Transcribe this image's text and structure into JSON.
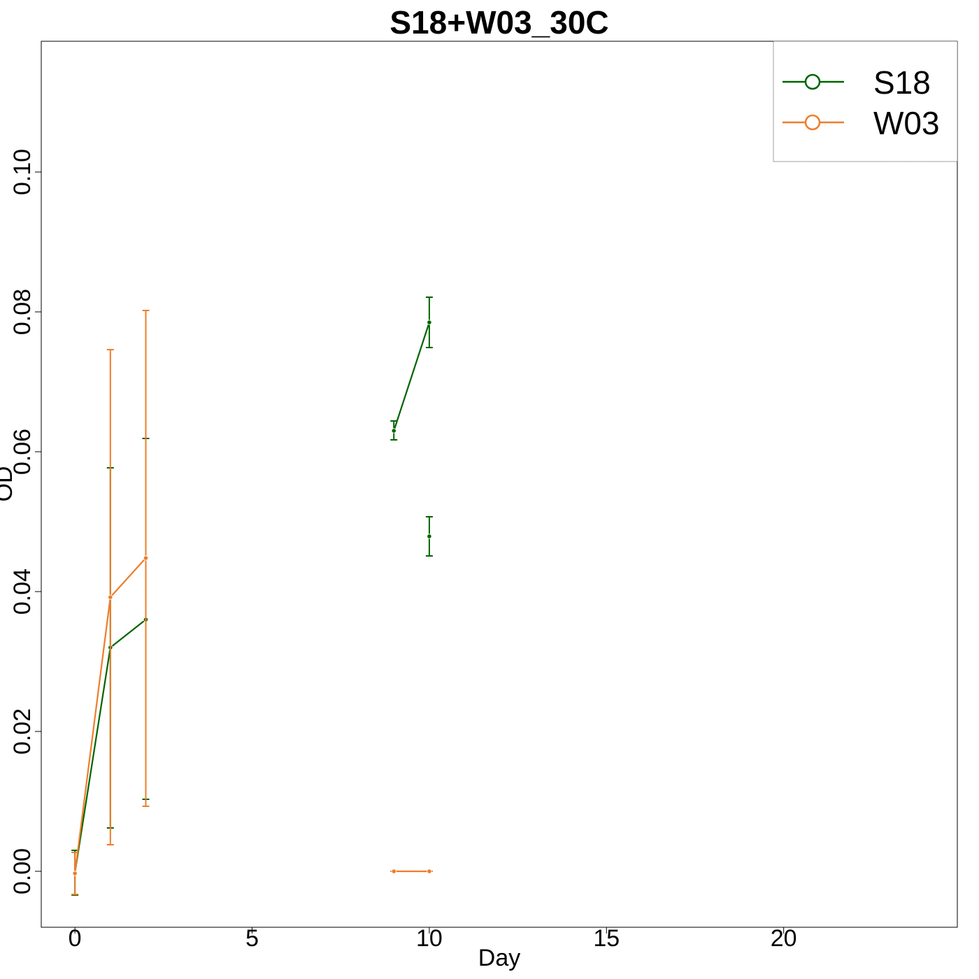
{
  "chart_data": {
    "type": "line",
    "title": "S18+W03_30C",
    "xlabel": "Day",
    "ylabel": "OD",
    "xlim": [
      -0.95,
      24.9
    ],
    "ylim": [
      -0.008,
      0.1187
    ],
    "xticks": [
      0,
      5,
      10,
      15,
      20
    ],
    "xtick_labels": [
      "0",
      "5",
      "10",
      "15",
      "20"
    ],
    "yticks": [
      0.0,
      0.02,
      0.04,
      0.06,
      0.08,
      0.1
    ],
    "ytick_labels": [
      "0.00",
      "0.02",
      "0.04",
      "0.06",
      "0.08",
      "0.10"
    ],
    "legend_position": "top-right",
    "grid": false,
    "series": [
      {
        "name": "S18",
        "color": "#006400",
        "segments": [
          [
            {
              "x": 0,
              "y": -0.0002,
              "lo": -0.0034,
              "hi": 0.003
            },
            {
              "x": 1,
              "y": 0.032,
              "lo": 0.0062,
              "hi": 0.0577
            },
            {
              "x": 2,
              "y": 0.036,
              "lo": 0.0103,
              "hi": 0.0619
            }
          ],
          [
            {
              "x": 9,
              "y": 0.063,
              "lo": 0.0617,
              "hi": 0.0644
            },
            {
              "x": 10,
              "y": 0.0785,
              "lo": 0.0749,
              "hi": 0.0821
            }
          ],
          [
            {
              "x": 10,
              "y": 0.0479,
              "lo": 0.0451,
              "hi": 0.0507
            }
          ]
        ]
      },
      {
        "name": "W03",
        "color": "#ee7d2b",
        "segments": [
          [
            {
              "x": 0,
              "y": -0.0003,
              "lo": -0.0033,
              "hi": 0.0027
            },
            {
              "x": 1,
              "y": 0.0392,
              "lo": 0.0038,
              "hi": 0.0746
            },
            {
              "x": 2,
              "y": 0.0448,
              "lo": 0.0093,
              "hi": 0.0802
            }
          ],
          [
            {
              "x": 9,
              "y": 0.0,
              "lo": 0.0,
              "hi": 0.0
            },
            {
              "x": 10,
              "y": 0.0,
              "lo": 0.0,
              "hi": 0.0
            }
          ]
        ]
      }
    ]
  }
}
